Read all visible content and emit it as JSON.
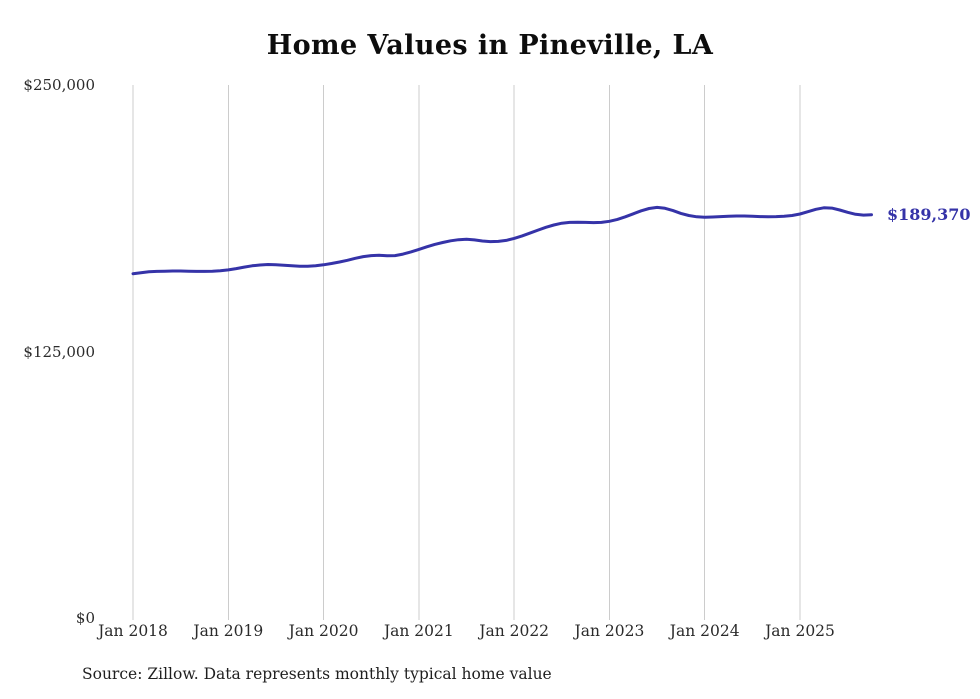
{
  "chart": {
    "title": "Home Values in Pineville, LA",
    "end_label": "$189,370",
    "source": "Source: Zillow. Data represents monthly typical home value",
    "y_ticks": [
      "$250,000",
      "$125,000",
      "$0"
    ],
    "x_ticks": [
      "Jan 2018",
      "Jan 2019",
      "Jan 2020",
      "Jan 2021",
      "Jan 2022",
      "Jan 2023",
      "Jan 2024",
      "Jan 2025"
    ]
  },
  "chart_data": {
    "type": "line",
    "title": "Home Values in Pineville, LA",
    "series_name": "Monthly typical home value",
    "x_start": "2018-01",
    "x_end": "2025-10",
    "x_tick_labels": [
      "Jan 2018",
      "Jan 2019",
      "Jan 2020",
      "Jan 2021",
      "Jan 2022",
      "Jan 2023",
      "Jan 2024",
      "Jan 2025"
    ],
    "ylim": [
      0,
      250000
    ],
    "y_tick_values": [
      0,
      125000,
      250000
    ],
    "grid": "vertical-yearly",
    "legend": "none",
    "line_color": "#3533a8",
    "end_label": "$189,370",
    "final_value": 189370,
    "values": [
      161800,
      162300,
      162700,
      162900,
      163000,
      163100,
      163100,
      163000,
      162900,
      162900,
      163000,
      163200,
      163600,
      164200,
      164900,
      165500,
      165900,
      166100,
      166000,
      165800,
      165500,
      165300,
      165300,
      165500,
      166000,
      166600,
      167300,
      168100,
      169000,
      169800,
      170300,
      170400,
      170200,
      170300,
      171000,
      172000,
      173200,
      174400,
      175500,
      176400,
      177200,
      177700,
      177900,
      177600,
      177100,
      176800,
      176900,
      177400,
      178300,
      179500,
      180800,
      182200,
      183500,
      184600,
      185400,
      185800,
      185900,
      185800,
      185700,
      185800,
      186300,
      187200,
      188400,
      189800,
      191200,
      192300,
      192800,
      192400,
      191300,
      190000,
      189000,
      188400,
      188200,
      188300,
      188500,
      188700,
      188800,
      188800,
      188700,
      188500,
      188400,
      188500,
      188700,
      189000,
      189700,
      190800,
      191900,
      192600,
      192500,
      191600,
      190500,
      189600,
      189200,
      189370
    ]
  }
}
